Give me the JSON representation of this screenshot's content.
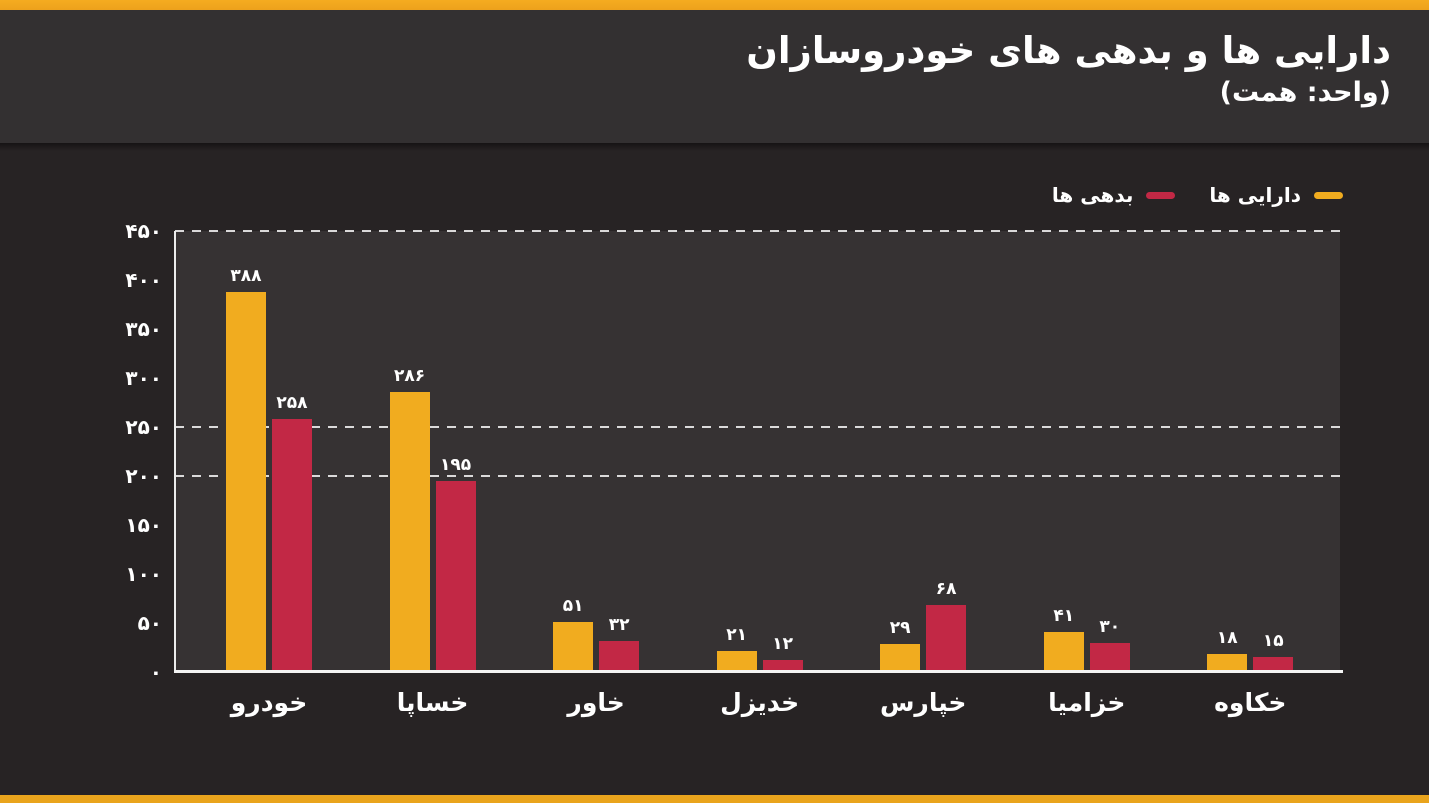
{
  "header": {
    "title": "دارایی ها و بدهی های خودروسازان",
    "subtitle": "(واحد: همت)"
  },
  "legend": {
    "items": [
      {
        "label": "دارایی ها",
        "color": "#F1AC1F"
      },
      {
        "label": "بدهی ها",
        "color": "#C22845"
      }
    ]
  },
  "chart_data": {
    "type": "bar",
    "title": "دارایی ها و بدهی های خودروسازان",
    "unit_note": "(واحد: همت)",
    "categories": [
      "خودرو",
      "خساپا",
      "خاور",
      "خدیزل",
      "خپارس",
      "خزامیا",
      "خکاوه"
    ],
    "series": [
      {
        "name": "دارایی ها",
        "color": "#F1AC1F",
        "values": [
          388,
          286,
          51,
          21,
          29,
          41,
          18
        ],
        "value_labels": [
          "۳۸۸",
          "۲۸۶",
          "۵۱",
          "۲۱",
          "۲۹",
          "۴۱",
          "۱۸"
        ]
      },
      {
        "name": "بدهی ها",
        "color": "#C22845",
        "values": [
          258,
          195,
          32,
          12,
          68,
          30,
          15
        ],
        "value_labels": [
          "۲۵۸",
          "۱۹۵",
          "۳۲",
          "۱۲",
          "۶۸",
          "۳۰",
          "۱۵"
        ]
      }
    ],
    "ylim": [
      0,
      450
    ],
    "yticks": [
      {
        "value": 450,
        "label": "۴۵۰"
      },
      {
        "value": 400,
        "label": "۴۰۰"
      },
      {
        "value": 350,
        "label": "۳۵۰"
      },
      {
        "value": 300,
        "label": "۳۰۰"
      },
      {
        "value": 250,
        "label": "۲۵۰"
      },
      {
        "value": 200,
        "label": "۲۰۰"
      },
      {
        "value": 150,
        "label": "۱۵۰"
      },
      {
        "value": 100,
        "label": "۱۰۰"
      },
      {
        "value": 50,
        "label": "۵۰"
      },
      {
        "value": 0,
        "label": "۰"
      }
    ],
    "gridline_values": [
      450,
      250,
      200
    ],
    "grid": "dashed-horizontal",
    "legend_position": "top-right"
  },
  "colors": {
    "accent_strip": "#F0A71E",
    "assets_bar": "#F1AC1F",
    "liabilities_bar": "#C22845",
    "header_bg": "#333031",
    "page_bg": "#272324",
    "plot_bg": "#363233",
    "text": "#FFFFFF"
  }
}
